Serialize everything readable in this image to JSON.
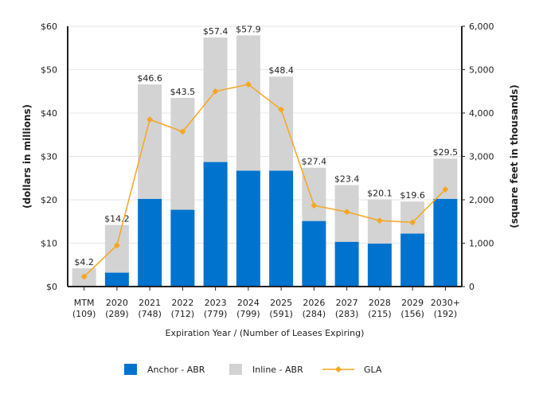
{
  "chart_data": {
    "type": "bar",
    "stacked": true,
    "categories": [
      "MTM",
      "2020",
      "2021",
      "2022",
      "2023",
      "2024",
      "2025",
      "2026",
      "2027",
      "2028",
      "2029",
      "2030+"
    ],
    "category_sublabels": [
      "(109)",
      "(289)",
      "(748)",
      "(712)",
      "(779)",
      "(799)",
      "(591)",
      "(284)",
      "(283)",
      "(215)",
      "(156)",
      "(192)"
    ],
    "totals": [
      4.2,
      14.2,
      46.6,
      43.5,
      57.4,
      57.9,
      48.4,
      27.4,
      23.4,
      20.1,
      19.6,
      29.5
    ],
    "total_labels": [
      "$4.2",
      "$14.2",
      "$46.6",
      "$43.5",
      "$57.4",
      "$57.9",
      "$48.4",
      "$27.4",
      "$23.4",
      "$20.1",
      "$19.6",
      "$29.5"
    ],
    "series": [
      {
        "name": "Anchor - ABR",
        "type": "bar",
        "axis": "left",
        "color": "#0073cf",
        "values": [
          0,
          3.2,
          20.2,
          17.7,
          28.7,
          26.7,
          26.7,
          15.1,
          10.3,
          9.9,
          12.2,
          20.2
        ]
      },
      {
        "name": "Inline - ABR",
        "type": "bar",
        "axis": "left",
        "color": "#d3d3d3",
        "values": [
          4.2,
          11.0,
          26.4,
          25.8,
          28.7,
          31.2,
          21.7,
          12.3,
          13.1,
          10.2,
          7.4,
          9.3
        ]
      },
      {
        "name": "GLA",
        "type": "line",
        "axis": "right",
        "color": "#f5a623",
        "values": [
          230,
          950,
          3850,
          3570,
          4500,
          4660,
          4080,
          1870,
          1720,
          1520,
          1480,
          2240
        ]
      }
    ],
    "xlabel": "Expiration Year / (Number of Leases Expiring)",
    "ylabel": "(dollars in millions)",
    "y2label": "(square feet in thousands)",
    "ylim": [
      0,
      60
    ],
    "y2lim": [
      0,
      6000
    ],
    "yticks": [
      "$0",
      "$10",
      "$20",
      "$30",
      "$40",
      "$50",
      "$60"
    ],
    "y2ticks": [
      "0",
      "1,000",
      "2,000",
      "3,000",
      "4,000",
      "5,000",
      "6,000"
    ],
    "grid": true,
    "legend_position": "bottom"
  }
}
